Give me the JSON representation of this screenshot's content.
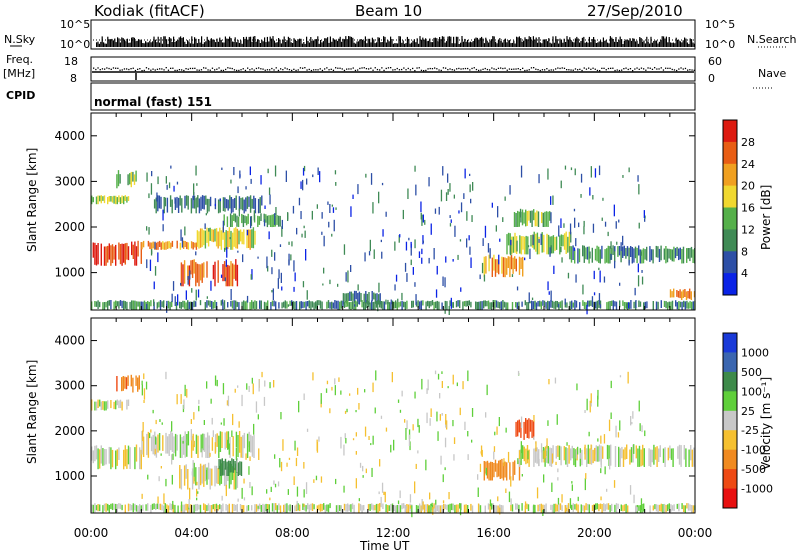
{
  "header": {
    "station": "Kodiak (fitACF)",
    "beam": "Beam 10",
    "date": "27/Sep/2010"
  },
  "summary_panel": {
    "nsky_label": "N.Sky",
    "nsky_ticks": [
      "10^5",
      "10^0"
    ],
    "nsearch_label": "N.Search",
    "nsearch_ticks": [
      "10^5",
      "10^0"
    ],
    "freq_label_1": "Freq.",
    "freq_label_2": "[MHz]",
    "freq_ticks": [
      "18",
      "8"
    ],
    "nave_label": "Nave",
    "nave_ticks": [
      "60",
      "0"
    ],
    "cpid_label": "CPID",
    "cpid_value": "normal (fast) 151"
  },
  "chart_data": [
    {
      "type": "heatmap",
      "title": "",
      "xlabel": "Time UT",
      "ylabel": "Slant Range [km]",
      "x_ticks": [
        "00:00",
        "04:00",
        "08:00",
        "12:00",
        "16:00",
        "20:00",
        "00:00"
      ],
      "xlim_hours": [
        0,
        24
      ],
      "ylim_km": [
        180,
        4500
      ],
      "y_ticks": [
        1000,
        2000,
        3000,
        4000
      ],
      "colorbar": {
        "label": "Power [dB]",
        "ticks": [
          "4",
          "8",
          "12",
          "16",
          "20",
          "24",
          "28"
        ],
        "colors": [
          "#0a23e6",
          "#2d4fa6",
          "#3f8a55",
          "#55b04a",
          "#f0d830",
          "#f0a020",
          "#e85d14",
          "#dd1a10"
        ]
      },
      "regions": [
        {
          "x": [
            0.0,
            2.0
          ],
          "y": [
            1150,
            1700
          ],
          "value": 28
        },
        {
          "x": [
            0.0,
            1.5
          ],
          "y": [
            2500,
            2700
          ],
          "value": 16
        },
        {
          "x": [
            1.0,
            1.9
          ],
          "y": [
            2850,
            3250
          ],
          "value": 14
        },
        {
          "x": [
            2.0,
            4.2
          ],
          "y": [
            1500,
            1700
          ],
          "value": 22
        },
        {
          "x": [
            3.5,
            5.8
          ],
          "y": [
            700,
            1300
          ],
          "value": 26
        },
        {
          "x": [
            4.2,
            6.5
          ],
          "y": [
            1500,
            2000
          ],
          "value": 18
        },
        {
          "x": [
            5.2,
            7.5
          ],
          "y": [
            2000,
            2300
          ],
          "value": 12
        },
        {
          "x": [
            2.5,
            6.8
          ],
          "y": [
            2300,
            2700
          ],
          "value": 8
        },
        {
          "x": [
            10.0,
            11.5
          ],
          "y": [
            300,
            600
          ],
          "value": 8
        },
        {
          "x": [
            15.6,
            17.2
          ],
          "y": [
            900,
            1400
          ],
          "value": 22
        },
        {
          "x": [
            16.5,
            19.0
          ],
          "y": [
            1400,
            1900
          ],
          "value": 16
        },
        {
          "x": [
            19.0,
            24.0
          ],
          "y": [
            1200,
            1600
          ],
          "value": 10
        },
        {
          "x": [
            16.8,
            18.2
          ],
          "y": [
            2000,
            2400
          ],
          "value": 14
        },
        {
          "x": [
            23.0,
            24.0
          ],
          "y": [
            400,
            650
          ],
          "value": 24
        },
        {
          "x": [
            0.0,
            24.0
          ],
          "y": [
            180,
            400
          ],
          "value": 10
        }
      ]
    },
    {
      "type": "heatmap",
      "title": "",
      "xlabel": "Time UT",
      "ylabel": "Slant Range [km]",
      "x_ticks": [
        "00:00",
        "04:00",
        "08:00",
        "12:00",
        "16:00",
        "20:00",
        "00:00"
      ],
      "xlim_hours": [
        0,
        24
      ],
      "ylim_km": [
        180,
        4500
      ],
      "y_ticks": [
        1000,
        2000,
        3000,
        4000
      ],
      "colorbar": {
        "label": "Velocity [m s⁻¹]",
        "ticks": [
          "1000",
          "500",
          "100",
          "25",
          "-25",
          "-100",
          "-500",
          "-1000"
        ],
        "colors": [
          "#1a3ad8",
          "#3b66b0",
          "#3d8a4a",
          "#5fcf3a",
          "#c8c8c8",
          "#f5c030",
          "#f08a20",
          "#ee4a14",
          "#e81010"
        ]
      },
      "regions": [
        {
          "x": [
            0.0,
            2.0
          ],
          "y": [
            1150,
            1700
          ],
          "value": 0
        },
        {
          "x": [
            1.0,
            1.9
          ],
          "y": [
            2850,
            3250
          ],
          "value": -500
        },
        {
          "x": [
            0.0,
            1.5
          ],
          "y": [
            2450,
            2700
          ],
          "value": 0
        },
        {
          "x": [
            2.0,
            6.5
          ],
          "y": [
            1400,
            2000
          ],
          "value": 0
        },
        {
          "x": [
            3.5,
            5.8
          ],
          "y": [
            700,
            1300
          ],
          "value": 0
        },
        {
          "x": [
            5.0,
            6.0
          ],
          "y": [
            1000,
            1400
          ],
          "value": 200
        },
        {
          "x": [
            15.6,
            17.0
          ],
          "y": [
            900,
            1400
          ],
          "value": -300
        },
        {
          "x": [
            16.8,
            17.6
          ],
          "y": [
            1800,
            2300
          ],
          "value": -700
        },
        {
          "x": [
            17.0,
            24.0
          ],
          "y": [
            1200,
            1700
          ],
          "value": 0
        },
        {
          "x": [
            0.0,
            24.0
          ],
          "y": [
            180,
            400
          ],
          "value": 0
        }
      ]
    }
  ]
}
